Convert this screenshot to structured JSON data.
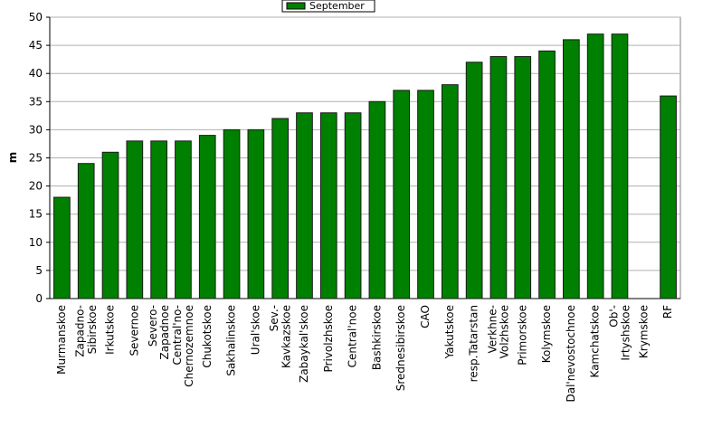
{
  "chart_data": {
    "type": "bar",
    "y_label": "m",
    "categories": [
      "Murmanskoe",
      "Zapadno-\nSibirskoe",
      "Irkutskoe",
      "Severnoe",
      "Severo-\nZapadnoe",
      "Central'no-\nChernozemnoe",
      "Chukotskoe",
      "Sakhalinskoe",
      "Ural'skoe",
      "Sev.-\nKavkazskoe",
      "Zabaykal'skoe",
      "Privolzhskoe",
      "Central'noe",
      "Bashkirskoe",
      "Srednesibirskoe",
      "CAO",
      "Yakutskoe",
      "resp.Tatarstan",
      "Verkhne-\nVolzhskoe",
      "Primorskoe",
      "Kolymskoe",
      "Dal'nevostochnoe",
      "Kamchatskoe",
      "Ob'-\nIrtyshskoe",
      "Krymskoe",
      "RF"
    ],
    "series": [
      {
        "name": "September",
        "color": "#008000",
        "values": [
          18,
          24,
          26,
          28,
          28,
          28,
          29,
          30,
          30,
          32,
          33,
          33,
          33,
          35,
          37,
          37,
          38,
          42,
          43,
          43,
          44,
          46,
          47,
          47,
          null,
          36
        ]
      }
    ],
    "ylim": [
      0,
      50
    ],
    "yticks": [
      0,
      5,
      10,
      15,
      20,
      25,
      30,
      35,
      40,
      45,
      50
    ],
    "grid": true,
    "legend": "top"
  }
}
